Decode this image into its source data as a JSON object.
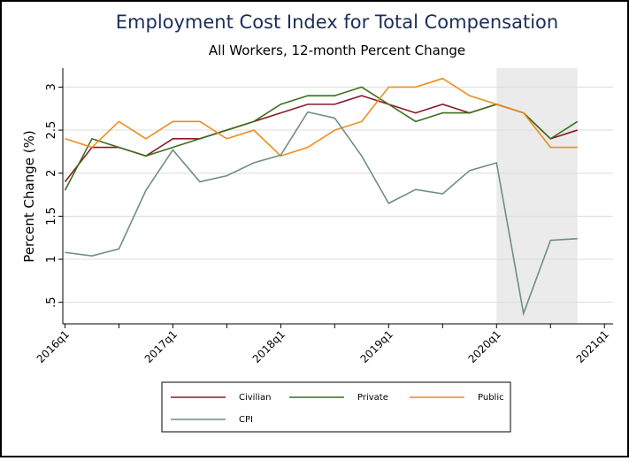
{
  "chart_data": {
    "type": "line",
    "title": "Employment Cost Index for Total Compensation",
    "subtitle": "All Workers, 12-month Percent Change",
    "y_label": "Percent Change (%)",
    "x": [
      2016,
      2016.25,
      2016.5,
      2016.75,
      2017,
      2017.25,
      2017.5,
      2017.75,
      2018,
      2018.25,
      2018.5,
      2018.75,
      2019,
      2019.25,
      2019.5,
      2019.75,
      2020,
      2020.25,
      2020.5,
      2020.75
    ],
    "series": [
      {
        "name": "Civilian",
        "color": "#8b1a2a",
        "values": [
          1.9,
          2.3,
          2.3,
          2.2,
          2.4,
          2.4,
          2.5,
          2.6,
          2.7,
          2.8,
          2.8,
          2.9,
          2.8,
          2.7,
          2.8,
          2.7,
          2.8,
          2.7,
          2.4,
          2.5
        ]
      },
      {
        "name": "Private",
        "color": "#3d6f1c",
        "values": [
          1.8,
          2.4,
          2.3,
          2.2,
          2.3,
          2.4,
          2.5,
          2.6,
          2.8,
          2.9,
          2.9,
          3.0,
          2.8,
          2.6,
          2.7,
          2.7,
          2.8,
          2.7,
          2.4,
          2.6
        ]
      },
      {
        "name": "Public",
        "color": "#f08c1c",
        "values": [
          2.4,
          2.3,
          2.6,
          2.4,
          2.6,
          2.6,
          2.4,
          2.5,
          2.2,
          2.3,
          2.5,
          2.6,
          3.0,
          3.0,
          3.1,
          2.9,
          2.8,
          2.7,
          2.3,
          2.3
        ]
      },
      {
        "name": "CPI",
        "color": "#6e8f82",
        "values": [
          1.08,
          1.04,
          1.12,
          1.8,
          2.27,
          1.9,
          1.97,
          2.12,
          2.21,
          2.71,
          2.64,
          2.2,
          1.65,
          1.81,
          1.76,
          2.03,
          2.12,
          0.37,
          1.22,
          1.24
        ]
      }
    ],
    "xlim": [
      2015.98,
      2021.08
    ],
    "xticks": [
      {
        "value": 2016,
        "label": "2016q1"
      },
      {
        "value": 2017,
        "label": "2017q1"
      },
      {
        "value": 2018,
        "label": "2018q1"
      },
      {
        "value": 2019,
        "label": "2019q1"
      },
      {
        "value": 2020,
        "label": "2020q1"
      },
      {
        "value": 2021,
        "label": "2021q1"
      }
    ],
    "minor_xticks": [
      2016.5,
      2017.5,
      2018.5,
      2019.5,
      2020.5
    ],
    "ylim": [
      0.25,
      3.22
    ],
    "yticks": [
      {
        "value": 0.5,
        "label": ".5"
      },
      1,
      1.5,
      2,
      2.5,
      3
    ],
    "shade": [
      2020,
      2020.75
    ],
    "grid": true
  }
}
